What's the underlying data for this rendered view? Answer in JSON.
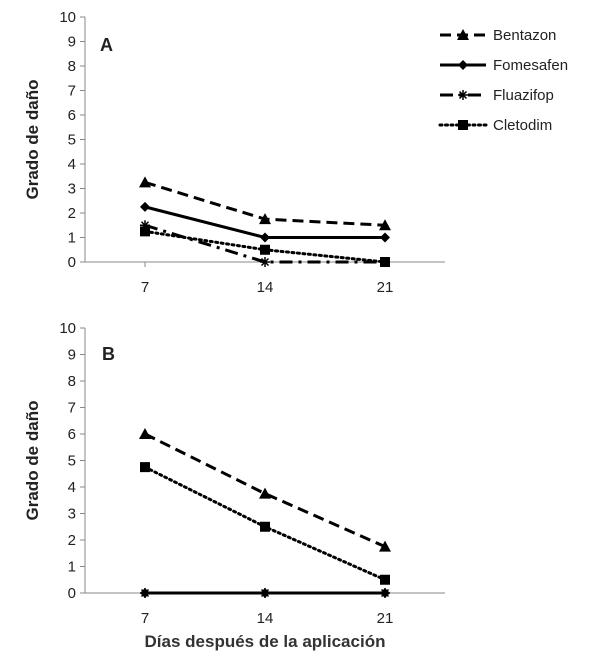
{
  "chart_data": [
    {
      "type": "line",
      "panel_label": "A",
      "x": [
        7,
        14,
        21
      ],
      "categories": [
        "7",
        "14",
        "21"
      ],
      "ylabel": "Grado de daño",
      "xlabel": "",
      "ylim": [
        0,
        10
      ],
      "yticks": [
        "0",
        "1",
        "2",
        "3",
        "4",
        "5",
        "6",
        "7",
        "8",
        "9",
        "10"
      ],
      "series": [
        {
          "name": "Bentazon",
          "values": [
            3.25,
            1.75,
            1.5
          ]
        },
        {
          "name": "Fomesafen",
          "values": [
            2.25,
            1.0,
            1.0
          ]
        },
        {
          "name": "Fluazifop",
          "values": [
            1.5,
            0.0,
            0.0
          ]
        },
        {
          "name": "Cletodim",
          "values": [
            1.25,
            0.5,
            0.0
          ]
        }
      ],
      "legend": "top-right",
      "grid": false
    },
    {
      "type": "line",
      "panel_label": "B",
      "x": [
        7,
        14,
        21
      ],
      "categories": [
        "7",
        "14",
        "21"
      ],
      "ylabel": "Grado de daño",
      "xlabel": "Días después de la aplicación",
      "ylim": [
        0,
        10
      ],
      "yticks": [
        "0",
        "1",
        "2",
        "3",
        "4",
        "5",
        "6",
        "7",
        "8",
        "9",
        "10"
      ],
      "series": [
        {
          "name": "Bentazon",
          "values": [
            6.0,
            3.75,
            1.75
          ]
        },
        {
          "name": "Fomesafen",
          "values": [
            0.0,
            0.0,
            0.0
          ]
        },
        {
          "name": "Fluazifop",
          "values": [
            0.0,
            0.0,
            0.0
          ]
        },
        {
          "name": "Cletodim",
          "values": [
            4.75,
            2.5,
            0.5
          ]
        }
      ],
      "legend": "none",
      "grid": false
    }
  ],
  "styles": {
    "Bentazon": {
      "dash": "dashed",
      "marker": "triangle"
    },
    "Fomesafen": {
      "dash": "solid",
      "marker": "diamond"
    },
    "Fluazifop": {
      "dash": "dash-dot",
      "marker": "asterisk"
    },
    "Cletodim": {
      "dash": "dotted",
      "marker": "square"
    }
  },
  "colors": {
    "line": "#000000",
    "axis": "#888888",
    "text": "#222222"
  }
}
